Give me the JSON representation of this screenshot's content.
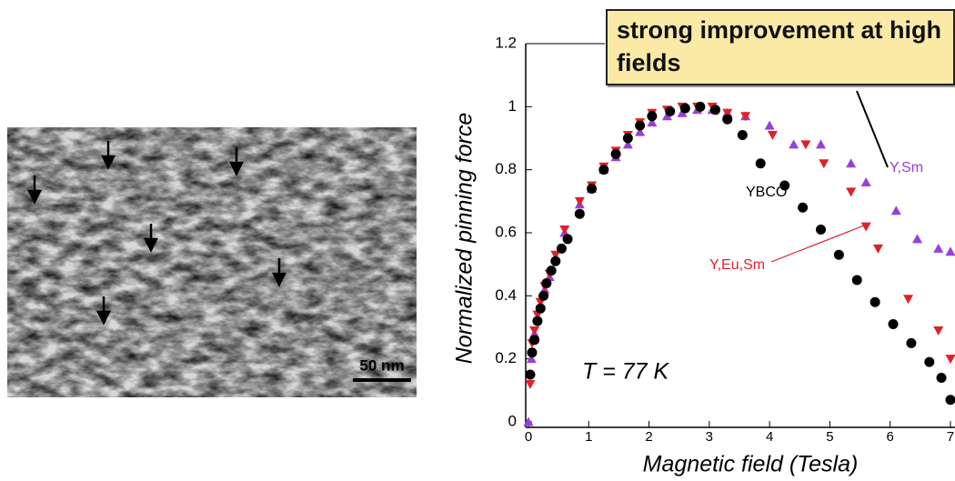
{
  "image": {
    "scale_bar": "50 nm"
  },
  "chart_data": {
    "type": "scatter",
    "xlabel": "Magnetic field (Tesla)",
    "ylabel": "Normalized pinning force",
    "annotations": [
      "strong improvement at high fields",
      "T = 77 K"
    ],
    "xlim": [
      0,
      7
    ],
    "ylim": [
      0,
      1.2
    ],
    "xticks": [
      0,
      1,
      2,
      3,
      4,
      5,
      6,
      7
    ],
    "yticks": [
      0,
      0.2,
      0.4,
      0.6,
      0.8,
      1,
      1.2
    ],
    "series": [
      {
        "name": "YBCO",
        "color": "#000000",
        "marker": "circle",
        "x": [
          0.03,
          0.06,
          0.1,
          0.15,
          0.2,
          0.25,
          0.3,
          0.38,
          0.45,
          0.55,
          0.65,
          0.85,
          1.05,
          1.25,
          1.45,
          1.65,
          1.85,
          2.05,
          2.35,
          2.6,
          2.85,
          3.1,
          3.3,
          3.55,
          3.85,
          4.25,
          4.55,
          4.85,
          5.15,
          5.45,
          5.75,
          6.05,
          6.35,
          6.65,
          6.85,
          7.0
        ],
        "values": [
          0.15,
          0.22,
          0.26,
          0.32,
          0.36,
          0.4,
          0.44,
          0.48,
          0.51,
          0.55,
          0.58,
          0.66,
          0.74,
          0.8,
          0.85,
          0.9,
          0.94,
          0.97,
          0.985,
          0.995,
          1.0,
          0.99,
          0.96,
          0.91,
          0.82,
          0.75,
          0.68,
          0.61,
          0.53,
          0.45,
          0.38,
          0.31,
          0.25,
          0.19,
          0.14,
          0.07
        ]
      },
      {
        "name": "Y,Eu,Sm",
        "color": "#e0202a",
        "marker": "triangle-down",
        "x": [
          0.03,
          0.06,
          0.1,
          0.15,
          0.2,
          0.27,
          0.35,
          0.45,
          0.6,
          0.85,
          1.05,
          1.25,
          1.45,
          1.65,
          1.85,
          2.05,
          2.3,
          2.55,
          2.8,
          3.05,
          3.3,
          3.6,
          4.05,
          4.6,
          4.9,
          5.35,
          5.6,
          5.8,
          6.3,
          6.8,
          7.0
        ],
        "values": [
          0.12,
          0.25,
          0.29,
          0.34,
          0.38,
          0.43,
          0.47,
          0.53,
          0.61,
          0.7,
          0.75,
          0.81,
          0.86,
          0.91,
          0.95,
          0.98,
          0.99,
          1.0,
          1.0,
          1.0,
          0.98,
          0.97,
          0.91,
          0.88,
          0.82,
          0.73,
          0.62,
          0.55,
          0.39,
          0.29,
          0.2
        ]
      },
      {
        "name": "Y,Sm",
        "color": "#9a3fd6",
        "marker": "triangle-up",
        "x": [
          0.0,
          0.05,
          0.1,
          0.15,
          0.2,
          0.27,
          0.35,
          0.45,
          0.6,
          0.85,
          1.05,
          1.25,
          1.45,
          1.65,
          1.85,
          2.05,
          2.3,
          2.55,
          2.8,
          3.05,
          3.3,
          3.6,
          4.0,
          4.4,
          4.85,
          5.35,
          5.6,
          6.1,
          6.45,
          6.8,
          7.0
        ],
        "values": [
          0.0,
          0.2,
          0.28,
          0.33,
          0.37,
          0.42,
          0.46,
          0.52,
          0.6,
          0.69,
          0.74,
          0.8,
          0.84,
          0.88,
          0.92,
          0.95,
          0.97,
          0.98,
          0.99,
          0.99,
          0.98,
          0.97,
          0.94,
          0.88,
          0.88,
          0.82,
          0.76,
          0.67,
          0.58,
          0.55,
          0.54
        ]
      }
    ]
  }
}
